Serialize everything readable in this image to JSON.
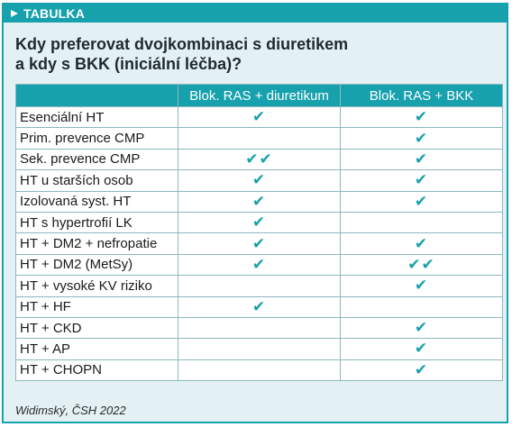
{
  "box": {
    "tab_icon": "filled-triangle-icon",
    "tab_label": "TABULKA",
    "accent_color": "#17a1ad",
    "background_color": "#e3f1f4"
  },
  "title": {
    "line1": "Kdy preferovat dvojkombinaci s diuretikem",
    "line2": "a kdy s BKK (iniciální léčba)?"
  },
  "table": {
    "headers": [
      "",
      "Blok. RAS + diuretikum",
      "Blok. RAS + BKK"
    ],
    "rows": [
      {
        "label": "Esenciální HT",
        "diuretikum": "✔",
        "bkk": "✔"
      },
      {
        "label": "Prim. prevence CMP",
        "diuretikum": "",
        "bkk": "✔"
      },
      {
        "label": "Sek. prevence CMP",
        "diuretikum": "✔✔",
        "bkk": "✔"
      },
      {
        "label": "HT u starších osob",
        "diuretikum": "✔",
        "bkk": "✔"
      },
      {
        "label": "Izolovaná syst. HT",
        "diuretikum": "✔",
        "bkk": "✔"
      },
      {
        "label": "HT s hypertrofií LK",
        "diuretikum": "✔",
        "bkk": ""
      },
      {
        "label": "HT + DM2 + nefropatie",
        "diuretikum": "✔",
        "bkk": "✔"
      },
      {
        "label": "HT + DM2 (MetSy)",
        "diuretikum": "✔",
        "bkk": "✔✔"
      },
      {
        "label": "HT + vysoké KV riziko",
        "diuretikum": "",
        "bkk": "✔"
      },
      {
        "label": "HT + HF",
        "diuretikum": "✔",
        "bkk": ""
      },
      {
        "label": "HT + CKD",
        "diuretikum": "",
        "bkk": "✔"
      },
      {
        "label": "HT + AP",
        "diuretikum": "",
        "bkk": "✔"
      },
      {
        "label": "HT + CHOPN",
        "diuretikum": "",
        "bkk": "✔"
      }
    ]
  },
  "source": "Widimský, ČSH 2022"
}
